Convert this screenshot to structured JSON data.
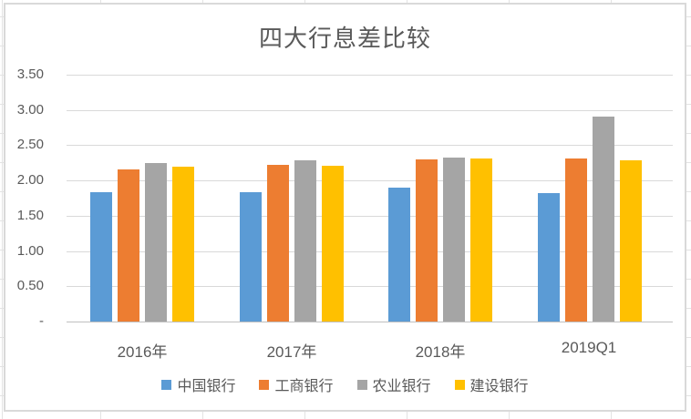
{
  "title": "四大行息差比较",
  "chart_data": {
    "type": "bar",
    "title": "四大行息差比较",
    "categories": [
      "2016年",
      "2017年",
      "2018年",
      "2019Q1"
    ],
    "series": [
      {
        "name": "中国银行",
        "color": "#5B9BD5",
        "values": [
          1.83,
          1.84,
          1.9,
          1.82
        ]
      },
      {
        "name": "工商银行",
        "color": "#ED7D31",
        "values": [
          2.16,
          2.22,
          2.3,
          2.31
        ]
      },
      {
        "name": "农业银行",
        "color": "#A5A5A5",
        "values": [
          2.25,
          2.28,
          2.33,
          2.91
        ]
      },
      {
        "name": "建设银行",
        "color": "#FFC000",
        "values": [
          2.2,
          2.21,
          2.31,
          2.29
        ]
      }
    ],
    "y_ticks": [
      "3.50",
      "3.00",
      "2.50",
      "2.00",
      "1.50",
      "1.00",
      "0.50",
      "-"
    ],
    "ylim": [
      0,
      3.5
    ],
    "xlabel": "",
    "ylabel": "",
    "grid": true,
    "legend_position": "bottom",
    "colors": {
      "text": "#595959",
      "gridline": "#D9D9D9",
      "axis_line": "#BFBFBF",
      "chart_border": "#D9D9D9",
      "sheet_gridline": "#E3E3E3",
      "background": "#FFFFFF"
    }
  }
}
